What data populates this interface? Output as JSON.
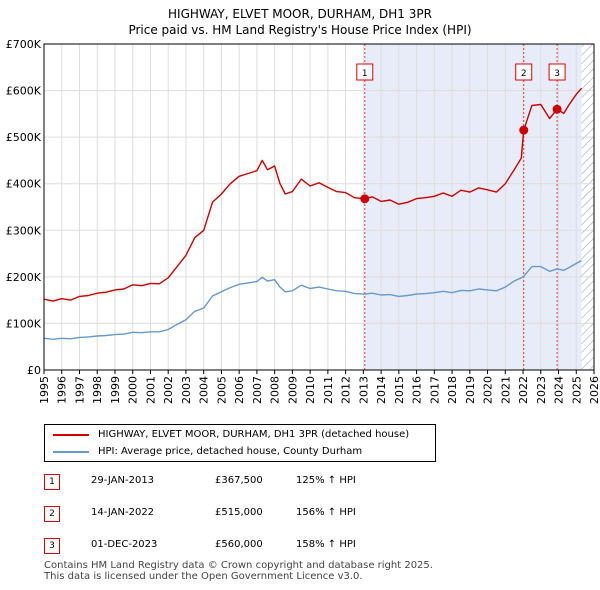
{
  "chart_data": {
    "type": "line",
    "title": "HIGHWAY, ELVET MOOR, DURHAM, DH1 3PR",
    "subtitle": "Price paid vs. HM Land Registry's House Price Index (HPI)",
    "xlim": [
      1995,
      2026
    ],
    "ylim": [
      0,
      700000
    ],
    "x_ticks": [
      "1995",
      "1996",
      "1997",
      "1998",
      "1999",
      "2000",
      "2001",
      "2002",
      "2003",
      "2004",
      "2005",
      "2006",
      "2007",
      "2008",
      "2009",
      "2010",
      "2011",
      "2012",
      "2013",
      "2014",
      "2015",
      "2016",
      "2017",
      "2018",
      "2019",
      "2020",
      "2021",
      "2022",
      "2023",
      "2024",
      "2025",
      "2026"
    ],
    "y_ticks": [
      {
        "value": 0,
        "label": "£0"
      },
      {
        "value": 100000,
        "label": "£100K"
      },
      {
        "value": 200000,
        "label": "£200K"
      },
      {
        "value": 300000,
        "label": "£300K"
      },
      {
        "value": 400000,
        "label": "£400K"
      },
      {
        "value": 500000,
        "label": "£500K"
      },
      {
        "value": 600000,
        "label": "£600K"
      },
      {
        "value": 700000,
        "label": "£700K"
      }
    ],
    "shaded_ranges": [
      [
        2013.08,
        2025.3
      ]
    ],
    "hatched_from": 2025.3,
    "series": [
      {
        "name": "HIGHWAY, ELVET MOOR, DURHAM, DH1 3PR (detached house)",
        "color": "#cc0000",
        "x": [
          1995.0,
          1995.5,
          1996.0,
          1996.5,
          1997.0,
          1997.5,
          1998.0,
          1998.5,
          1999.0,
          1999.5,
          2000.0,
          2000.5,
          2001.0,
          2001.5,
          2002.0,
          2002.5,
          2003.0,
          2003.5,
          2004.0,
          2004.5,
          2005.0,
          2005.5,
          2006.0,
          2006.5,
          2007.0,
          2007.3,
          2007.6,
          2008.0,
          2008.3,
          2008.6,
          2009.0,
          2009.5,
          2010.0,
          2010.5,
          2011.0,
          2011.5,
          2012.0,
          2012.5,
          2013.08,
          2013.5,
          2014.0,
          2014.5,
          2015.0,
          2015.5,
          2016.0,
          2016.5,
          2017.0,
          2017.5,
          2018.0,
          2018.5,
          2019.0,
          2019.5,
          2020.0,
          2020.5,
          2021.0,
          2021.5,
          2021.9,
          2022.04,
          2022.5,
          2023.0,
          2023.5,
          2023.92,
          2024.3,
          2024.6,
          2025.0,
          2025.3
        ],
        "values": [
          152000,
          148000,
          153000,
          150000,
          158000,
          160000,
          165000,
          167000,
          172000,
          174000,
          183000,
          181000,
          186000,
          185000,
          198000,
          222000,
          246000,
          284000,
          300000,
          360000,
          378000,
          400000,
          416000,
          422000,
          428000,
          450000,
          430000,
          438000,
          400000,
          378000,
          383000,
          410000,
          395000,
          402000,
          392000,
          383000,
          381000,
          370000,
          367500,
          372000,
          362000,
          365000,
          356000,
          360000,
          368000,
          370000,
          373000,
          380000,
          373000,
          386000,
          382000,
          391000,
          387000,
          382000,
          400000,
          430000,
          455000,
          515000,
          568000,
          570000,
          540000,
          560000,
          551000,
          570000,
          592000,
          605000
        ]
      },
      {
        "name": "HPI: Average price, detached house, County Durham",
        "color": "#6699cc",
        "x": [
          1995.0,
          1995.5,
          1996.0,
          1996.5,
          1997.0,
          1997.5,
          1998.0,
          1998.5,
          1999.0,
          1999.5,
          2000.0,
          2000.5,
          2001.0,
          2001.5,
          2002.0,
          2002.5,
          2003.0,
          2003.5,
          2004.0,
          2004.5,
          2005.0,
          2005.5,
          2006.0,
          2006.5,
          2007.0,
          2007.3,
          2007.6,
          2008.0,
          2008.3,
          2008.6,
          2009.0,
          2009.5,
          2010.0,
          2010.5,
          2011.0,
          2011.5,
          2012.0,
          2012.5,
          2013.08,
          2013.5,
          2014.0,
          2014.5,
          2015.0,
          2015.5,
          2016.0,
          2016.5,
          2017.0,
          2017.5,
          2018.0,
          2018.5,
          2019.0,
          2019.5,
          2020.0,
          2020.5,
          2021.0,
          2021.5,
          2021.9,
          2022.04,
          2022.5,
          2023.0,
          2023.5,
          2023.92,
          2024.3,
          2024.6,
          2025.0,
          2025.3
        ],
        "values": [
          68000,
          66000,
          68000,
          67000,
          70000,
          71000,
          73000,
          74000,
          76000,
          77000,
          81000,
          80000,
          82000,
          82000,
          87000,
          98000,
          108000,
          126000,
          133000,
          159000,
          168000,
          177000,
          184000,
          187000,
          190000,
          199000,
          191000,
          194000,
          178000,
          168000,
          170000,
          182000,
          175000,
          178000,
          174000,
          170000,
          169000,
          164000,
          163000,
          165000,
          161000,
          162000,
          158000,
          160000,
          163000,
          164000,
          166000,
          169000,
          166000,
          171000,
          170000,
          174000,
          172000,
          170000,
          178000,
          191000,
          198000,
          201000,
          222000,
          222000,
          212000,
          217000,
          214000,
          220000,
          229000,
          235000
        ]
      }
    ],
    "sales": [
      {
        "num": "1",
        "x": 2013.08,
        "value": 367500
      },
      {
        "num": "2",
        "x": 2022.04,
        "value": 515000
      },
      {
        "num": "3",
        "x": 2023.92,
        "value": 560000
      }
    ]
  },
  "legend": {
    "property_label": "HIGHWAY, ELVET MOOR, DURHAM, DH1 3PR (detached house)",
    "hpi_label": "HPI: Average price, detached house, County Durham",
    "property_color": "#cc0000",
    "hpi_color": "#6699cc"
  },
  "table": [
    {
      "num": "1",
      "date": "29-JAN-2013",
      "price": "£367,500",
      "hpi": "125% ↑ HPI"
    },
    {
      "num": "2",
      "date": "14-JAN-2022",
      "price": "£515,000",
      "hpi": "156% ↑ HPI"
    },
    {
      "num": "3",
      "date": "01-DEC-2023",
      "price": "£560,000",
      "hpi": "158% ↑ HPI"
    }
  ],
  "footer": {
    "line1": "Contains HM Land Registry data © Crown copyright and database right 2025.",
    "line2": "This data is licensed under the Open Government Licence v3.0."
  }
}
